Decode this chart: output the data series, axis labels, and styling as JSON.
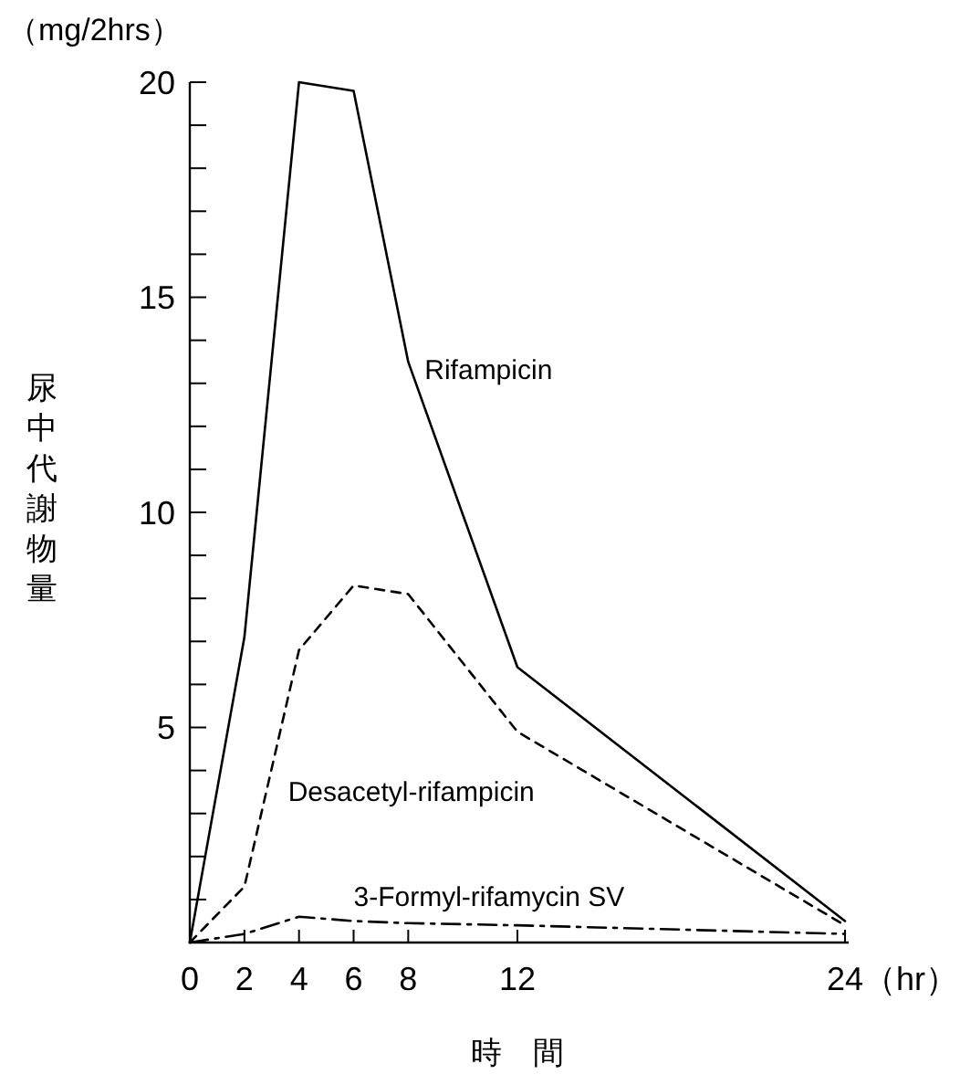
{
  "chart_data": {
    "type": "line",
    "xlabel": "時　間",
    "ylabel": "尿中代謝物量",
    "annotations": [
      "（mg/2hrs）",
      "（hr）"
    ],
    "x": [
      0,
      2,
      4,
      6,
      8,
      12,
      24
    ],
    "series": [
      {
        "name": "Rifampicin",
        "color": "#000000",
        "line_style": "solid",
        "values": [
          0,
          7.1,
          20,
          19.8,
          13.5,
          6.4,
          0.5
        ]
      },
      {
        "name": "Desacetyl-rifampicin",
        "color": "#000000",
        "line_style": "dashed",
        "values": [
          0,
          1.3,
          6.8,
          8.3,
          8.1,
          4.9,
          0.4
        ]
      },
      {
        "name": "3-Formyl-rifamycin SV",
        "color": "#000000",
        "line_style": "dashdot",
        "values": [
          0,
          0.2,
          0.6,
          0.5,
          0.45,
          0.4,
          0.2
        ]
      }
    ],
    "xlim": [
      0,
      24
    ],
    "ylim": [
      0,
      20
    ],
    "xticks": [
      0,
      2,
      4,
      6,
      8,
      12,
      24
    ],
    "yticks": [
      {
        "value": 1,
        "label": null
      },
      {
        "value": 2,
        "label": null
      },
      {
        "value": 3,
        "label": null
      },
      {
        "value": 4,
        "label": null
      },
      5,
      {
        "value": 6,
        "label": null
      },
      {
        "value": 7,
        "label": null
      },
      {
        "value": 8,
        "label": null
      },
      {
        "value": 9,
        "label": null
      },
      10,
      {
        "value": 11,
        "label": null
      },
      {
        "value": 12,
        "label": null
      },
      {
        "value": 13,
        "label": null
      },
      {
        "value": 14,
        "label": null
      },
      15,
      {
        "value": 16,
        "label": null
      },
      {
        "value": 17,
        "label": null
      },
      {
        "value": 18,
        "label": null
      },
      {
        "value": 19,
        "label": null
      },
      20
    ],
    "grid": false,
    "marker": "none"
  }
}
